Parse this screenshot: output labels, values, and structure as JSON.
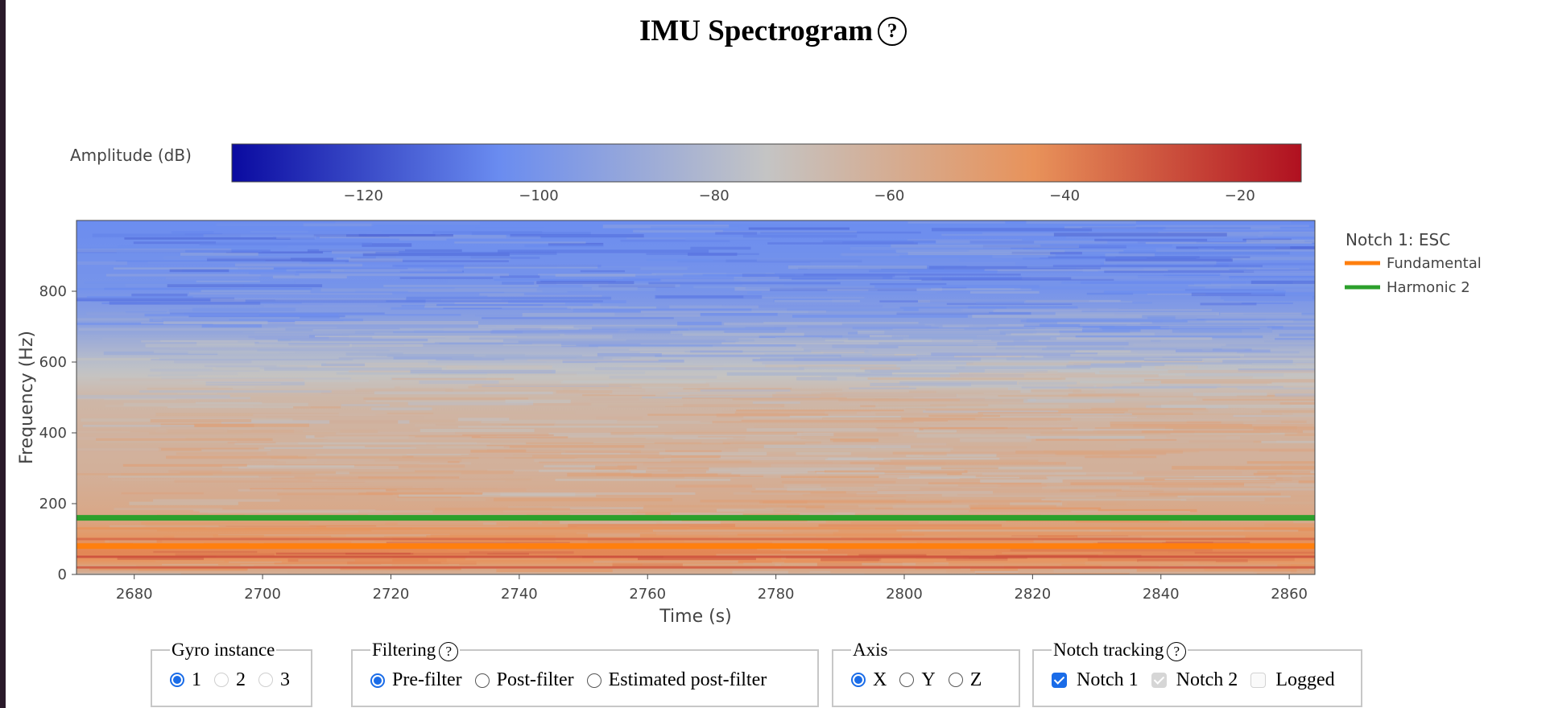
{
  "page": {
    "title": "IMU Spectrogram",
    "help_glyph": "?"
  },
  "chart_data": {
    "type": "heatmap",
    "title": "IMU Spectrogram",
    "xlabel": "Time (s)",
    "ylabel": "Frequency (Hz)",
    "xlim": [
      2671,
      2864
    ],
    "ylim": [
      0,
      1000
    ],
    "x_ticks": [
      2680,
      2700,
      2720,
      2740,
      2760,
      2780,
      2800,
      2820,
      2840,
      2860
    ],
    "y_ticks": [
      0,
      200,
      400,
      600,
      800
    ],
    "colorbar": {
      "title": "Amplitude (dB)",
      "range": [
        -135,
        -13
      ],
      "ticks": [
        -120,
        -100,
        -80,
        -60,
        -40,
        -20
      ],
      "colors": [
        "#0a0aa0",
        "#6a8cf0",
        "#c4c4c4",
        "#e8925a",
        "#b01020"
      ]
    },
    "amplitude_profile_db": [
      {
        "freq": 0,
        "db": -62
      },
      {
        "freq": 30,
        "db": -50
      },
      {
        "freq": 50,
        "db": -40
      },
      {
        "freq": 80,
        "db": -42
      },
      {
        "freq": 100,
        "db": -46
      },
      {
        "freq": 160,
        "db": -56
      },
      {
        "freq": 200,
        "db": -58
      },
      {
        "freq": 300,
        "db": -62
      },
      {
        "freq": 400,
        "db": -63
      },
      {
        "freq": 500,
        "db": -66
      },
      {
        "freq": 600,
        "db": -78
      },
      {
        "freq": 700,
        "db": -92
      },
      {
        "freq": 800,
        "db": -100
      },
      {
        "freq": 1000,
        "db": -104
      }
    ],
    "series": [
      {
        "name": "Fundamental",
        "color": "#ff7f0e",
        "x": [
          2671,
          2864
        ],
        "y": [
          80,
          80
        ]
      },
      {
        "name": "Harmonic 2",
        "color": "#2ca02c",
        "x": [
          2671,
          2864
        ],
        "y": [
          160,
          160
        ]
      }
    ],
    "legend": {
      "title": "Notch 1: ESC",
      "placement": "top-right"
    }
  },
  "controls": {
    "gyro": {
      "legend": "Gyro instance",
      "options": [
        "1",
        "2",
        "3"
      ],
      "selected": "1"
    },
    "filtering": {
      "legend": "Filtering",
      "options": [
        "Pre-filter",
        "Post-filter",
        "Estimated post-filter"
      ],
      "selected": "Pre-filter"
    },
    "axis": {
      "legend": "Axis",
      "options": [
        "X",
        "Y",
        "Z"
      ],
      "selected": "X"
    },
    "notch": {
      "legend": "Notch tracking",
      "notch1": "Notch 1",
      "notch2": "Notch 2",
      "logged": "Logged"
    }
  }
}
